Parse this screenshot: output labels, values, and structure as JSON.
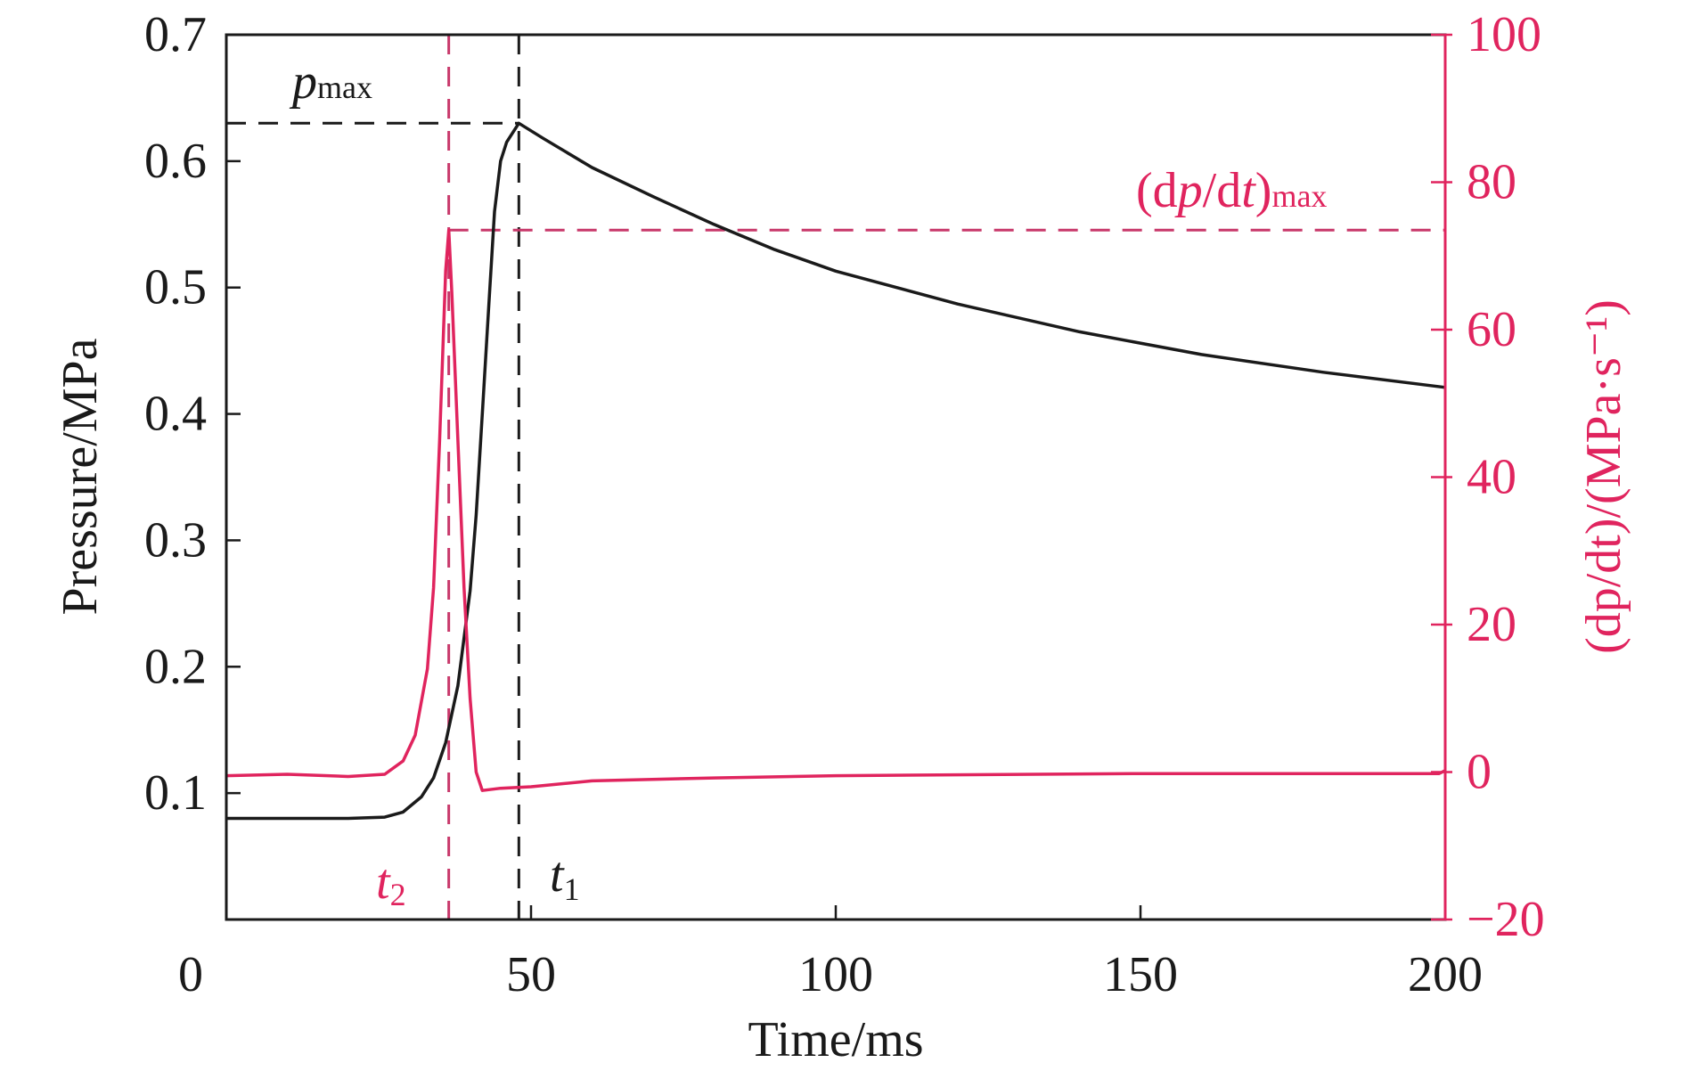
{
  "chart_data": {
    "type": "line",
    "xlabel": "Time/ms",
    "ylabel_left": "Pressure/MPa",
    "ylabel_right": "(dp/dt)/(MPa·s⁻¹)",
    "xlim": [
      0,
      200
    ],
    "ylim_left": [
      0,
      0.7
    ],
    "ylim_right": [
      -20,
      100
    ],
    "x_ticks": [
      "0",
      "50",
      "100",
      "150",
      "200"
    ],
    "y_left_ticks": [
      "0.1",
      "0.2",
      "0.3",
      "0.4",
      "0.5",
      "0.6",
      "0.7"
    ],
    "y_right_ticks": [
      "−20",
      "0",
      "20",
      "40",
      "60",
      "80",
      "100"
    ],
    "grid": false,
    "colors": {
      "pressure": "#1a1a1a",
      "rate": "#e0245e",
      "rate_guide": "#c8386a"
    },
    "series": [
      {
        "name": "Pressure",
        "axis": "left",
        "x": [
          0,
          10,
          20,
          26,
          29,
          32,
          34,
          36,
          38,
          40,
          41,
          42,
          43,
          44,
          45,
          46,
          48,
          52,
          60,
          70,
          80,
          90,
          100,
          120,
          140,
          160,
          180,
          200
        ],
        "y": [
          0.08,
          0.08,
          0.08,
          0.081,
          0.085,
          0.097,
          0.112,
          0.14,
          0.185,
          0.26,
          0.32,
          0.4,
          0.48,
          0.56,
          0.6,
          0.615,
          0.63,
          0.618,
          0.595,
          0.572,
          0.55,
          0.53,
          0.513,
          0.487,
          0.465,
          0.447,
          0.433,
          0.421
        ]
      },
      {
        "name": "dp/dt",
        "axis": "right",
        "x": [
          0,
          10,
          20,
          26,
          29,
          31,
          33,
          34,
          35,
          36,
          36.5,
          37,
          38,
          39,
          40,
          41,
          42,
          45,
          50,
          60,
          80,
          100,
          150,
          199,
          200
        ],
        "y": [
          -0.5,
          -0.3,
          -0.6,
          -0.3,
          1.5,
          5,
          14,
          25,
          45,
          68,
          73.5,
          65,
          45,
          25,
          10,
          0,
          -2.5,
          -2.2,
          -2.0,
          -1.2,
          -0.8,
          -0.5,
          -0.2,
          -0.2,
          0.2
        ]
      }
    ],
    "annotations": {
      "pmax": {
        "label": "p",
        "sub": "max",
        "value": 0.63
      },
      "dpdt_max": {
        "label_open": "(d",
        "label_p": "p",
        "label_mid": "/d",
        "label_t": "t",
        "label_close": ")",
        "sub": "max",
        "value": 73.5
      },
      "t1": {
        "label": "t",
        "sub": "1",
        "value": 48
      },
      "t2": {
        "label": "t",
        "sub": "2",
        "value": 36.5
      }
    }
  }
}
